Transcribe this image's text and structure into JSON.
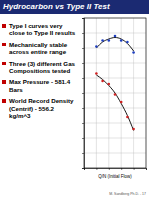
{
  "slide": {
    "title": "Hydrocarbon vs Type II Test",
    "bullets": [
      "Type I curves very close to Type II results",
      "Mechanically stable across entire range",
      "Three (3) different Gas Compositions tested",
      "Max Pressure - 581.4 Bars",
      "World Record Density (Centrif) - 556.2 kg/m^3"
    ],
    "footer": "M. Sandberg Ph.D. - 17"
  },
  "chart_data": {
    "type": "line",
    "x_label": "Q/N (Initial Flow)",
    "x": [
      2,
      3,
      4,
      5,
      6,
      7,
      8
    ],
    "xlim": [
      0,
      10
    ],
    "ylim": [
      0,
      100
    ],
    "xticks": [
      0,
      2,
      4,
      6,
      8,
      10
    ],
    "yticks": [
      0,
      10,
      20,
      30,
      40,
      50,
      60,
      70,
      80,
      90,
      100
    ],
    "grid": true,
    "tick_labels": false,
    "series": [
      {
        "type": "line",
        "color": "#000000",
        "line_style": "solid",
        "values": [
          80,
          84,
          86,
          87,
          86,
          83,
          78
        ]
      },
      {
        "type": "line",
        "color": "#000000",
        "line_style": "solid",
        "values": [
          62,
          59,
          55,
          50,
          43,
          35,
          25
        ]
      },
      {
        "type": "scatter",
        "color": "#1f3fbf",
        "marker": "circle",
        "values": [
          81,
          85,
          85,
          88,
          85,
          84,
          77
        ]
      },
      {
        "type": "scatter",
        "color": "#d02020",
        "marker": "circle",
        "values": [
          63,
          58,
          56,
          49,
          44,
          34,
          26
        ]
      }
    ]
  }
}
